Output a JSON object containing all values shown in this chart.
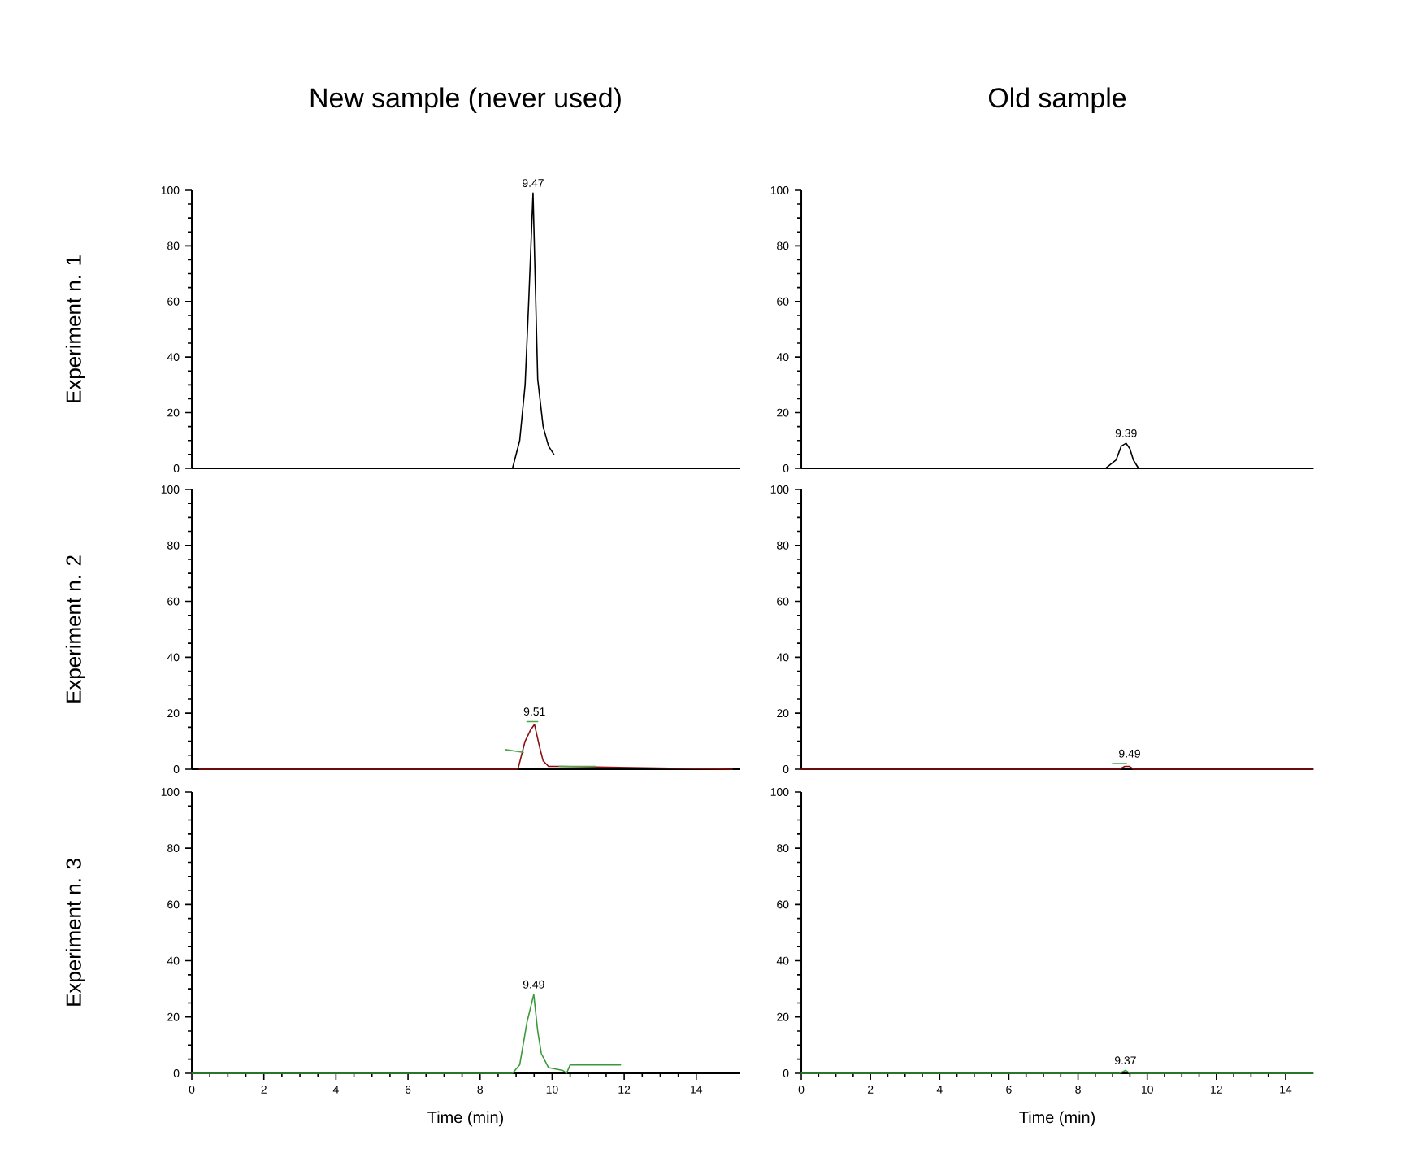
{
  "chart_data": [
    {
      "type": "line",
      "title": "New sample (never used)",
      "ylabel": "Experiment n. 1",
      "xlim": [
        0,
        15.2
      ],
      "ylim": [
        0,
        100
      ],
      "yticks": [
        0,
        20,
        40,
        60,
        80,
        100
      ],
      "tick_labels": "y",
      "series": [
        {
          "color": "#000000",
          "x": [
            8.9,
            9.1,
            9.25,
            9.35,
            9.47,
            9.6,
            9.75,
            9.9,
            10.05
          ],
          "values": [
            0,
            10,
            30,
            60,
            99,
            32,
            15,
            8,
            5
          ]
        }
      ],
      "annotations": [
        {
          "text": "9.47",
          "x": 9.47,
          "y": 99
        }
      ]
    },
    {
      "type": "line",
      "title": "Old sample",
      "xlim": [
        0,
        14.8
      ],
      "ylim": [
        0,
        100
      ],
      "yticks": [
        0,
        20,
        40,
        60,
        80,
        100
      ],
      "tick_labels": "y",
      "series": [
        {
          "color": "#000000",
          "x": [
            0,
            8.8,
            9.1,
            9.25,
            9.39,
            9.5,
            9.6,
            9.75,
            14.8
          ],
          "values": [
            0,
            0,
            3,
            8,
            9,
            7,
            3,
            0,
            0
          ]
        }
      ],
      "annotations": [
        {
          "text": "9.39",
          "x": 9.39,
          "y": 9
        }
      ]
    },
    {
      "type": "line",
      "ylabel": "Experiment n. 2",
      "xlim": [
        0,
        15.2
      ],
      "ylim": [
        0,
        100
      ],
      "yticks": [
        0,
        20,
        40,
        60,
        80,
        100
      ],
      "tick_labels": "y",
      "series": [
        {
          "color": "#8b1010",
          "x": [
            0.2,
            8.9,
            9.05,
            9.25,
            9.4,
            9.51,
            9.65,
            9.75,
            9.9,
            10.2,
            15
          ],
          "values": [
            0,
            0,
            0,
            10,
            14,
            16,
            8,
            3,
            1,
            1,
            0
          ]
        },
        {
          "color": "#4aa84a",
          "x": [
            8.7,
            9.2,
            9.25,
            9.3,
            9.6,
            9.65,
            10.2,
            11.2
          ],
          "values": [
            7,
            6,
            null,
            17,
            17,
            null,
            1,
            1
          ]
        }
      ],
      "annotations": [
        {
          "text": "9.51",
          "x": 9.51,
          "y": 17
        }
      ]
    },
    {
      "type": "line",
      "xlim": [
        0,
        14.8
      ],
      "ylim": [
        0,
        100
      ],
      "yticks": [
        0,
        20,
        40,
        60,
        80,
        100
      ],
      "tick_labels": "y",
      "series": [
        {
          "color": "#8b1010",
          "x": [
            0,
            9.2,
            9.35,
            9.49,
            9.6,
            14.8
          ],
          "values": [
            0,
            0,
            1,
            1,
            0,
            0
          ]
        },
        {
          "color": "#4aa84a",
          "x": [
            9.0,
            9.4
          ],
          "values": [
            2,
            2
          ]
        }
      ],
      "annotations": [
        {
          "text": "9.49",
          "x": 9.49,
          "y": 2
        }
      ]
    },
    {
      "type": "line",
      "ylabel": "Experiment n. 3",
      "xlabel": "Time (min)",
      "xlim": [
        0,
        15.2
      ],
      "ylim": [
        0,
        100
      ],
      "xticks": [
        0,
        2,
        4,
        6,
        8,
        10,
        12,
        14
      ],
      "yticks": [
        0,
        20,
        40,
        60,
        80,
        100
      ],
      "series": [
        {
          "color": "#3a9a3a",
          "x": [
            0,
            8.9,
            9.1,
            9.3,
            9.49,
            9.6,
            9.7,
            9.9,
            10.3,
            10.4,
            10.5,
            11.9
          ],
          "values": [
            0,
            0,
            3,
            18,
            28,
            15,
            7,
            2,
            1,
            0,
            3,
            3
          ]
        }
      ],
      "annotations": [
        {
          "text": "9.49",
          "x": 9.49,
          "y": 28
        }
      ]
    },
    {
      "type": "line",
      "xlabel": "Time (min)",
      "xlim": [
        0,
        14.8
      ],
      "ylim": [
        0,
        100
      ],
      "xticks": [
        0,
        2,
        4,
        6,
        8,
        10,
        12,
        14
      ],
      "yticks": [
        0,
        20,
        40,
        60,
        80,
        100
      ],
      "series": [
        {
          "color": "#3a9a3a",
          "x": [
            0,
            9.2,
            9.37,
            9.5,
            14.8
          ],
          "values": [
            0,
            0,
            1,
            0,
            0
          ]
        }
      ],
      "annotations": [
        {
          "text": "9.37",
          "x": 9.37,
          "y": 1
        }
      ]
    }
  ]
}
